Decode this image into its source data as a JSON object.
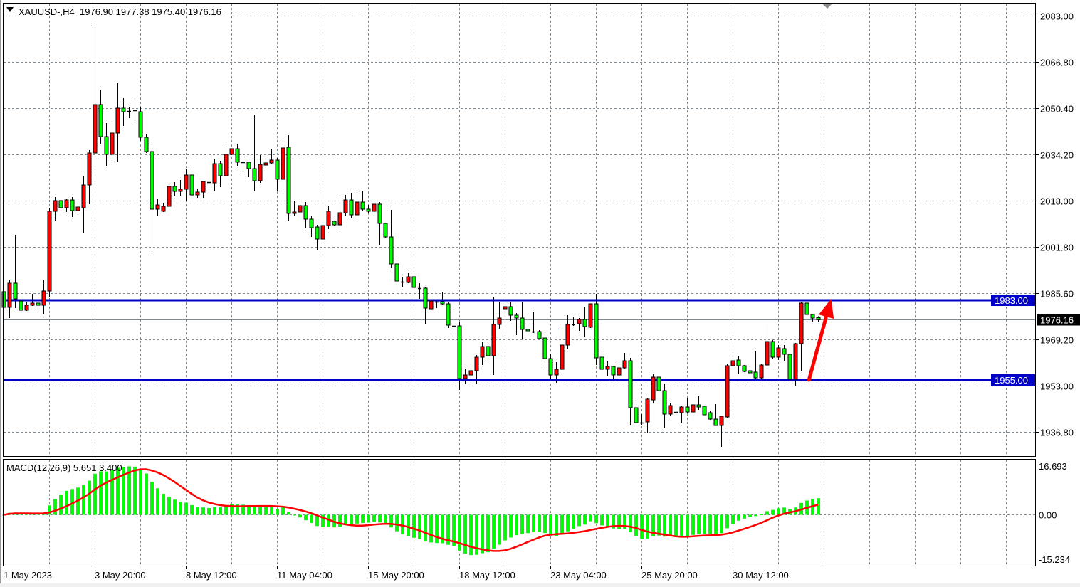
{
  "header": {
    "symbol": "XAUUSD-,H4",
    "ohlc_text": "1976.90 1977.38 1975.40 1976.16",
    "menu_icon": "triangle-down-icon"
  },
  "chart_data": [
    {
      "type": "candlestick",
      "symbol": "XAUUSD-",
      "timeframe": "H4",
      "up_color": "#FF0000",
      "down_color": "#00FF00",
      "grid": true,
      "ylim": [
        1928.25,
        2087.25
      ],
      "y_ticks": [
        "2083.00",
        "2066.80",
        "2050.40",
        "2034.20",
        "2018.00",
        "2001.80",
        "1985.60",
        "1969.20",
        "1953.00",
        "1936.80"
      ],
      "x_tick_labels": [
        {
          "bar": 0,
          "label": "1 May 2023"
        },
        {
          "bar": 16,
          "label": "3 May 20:00"
        },
        {
          "bar": 32,
          "label": "8 May 12:00"
        },
        {
          "bar": 48,
          "label": "11 May 04:00"
        },
        {
          "bar": 64,
          "label": "15 May 20:00"
        },
        {
          "bar": 80,
          "label": "18 May 12:00"
        },
        {
          "bar": 96,
          "label": "23 May 04:00"
        },
        {
          "bar": 112,
          "label": "25 May 20:00"
        },
        {
          "bar": 128,
          "label": "30 May 12:00"
        }
      ],
      "horizontal_lines": [
        {
          "price": 1983.0,
          "label": "1983.00",
          "color": "#0000C8"
        },
        {
          "price": 1955.0,
          "label": "1955.00",
          "color": "#0000C8"
        }
      ],
      "current_price": {
        "price": 1976.16,
        "label": "1976.16",
        "color": "#000000"
      },
      "annotations": [
        {
          "type": "arrow",
          "color": "#FF0000",
          "from": {
            "bar": 141.4,
            "price": 1955.0
          },
          "to": {
            "bar": 145.3,
            "price": 1983.5
          }
        }
      ],
      "ohlc": [
        [
          1986.0,
          1986.5,
          1978.5,
          1980.5
        ],
        [
          1980.5,
          1990.0,
          1976.75,
          1989.0
        ],
        [
          1989.0,
          2006.0,
          1980.25,
          1983.5
        ],
        [
          1982.75,
          1984.0,
          1979.25,
          1979.5
        ],
        [
          1979.5,
          1982.25,
          1979.25,
          1981.25
        ],
        [
          1981.25,
          1985.25,
          1981.0,
          1982.0
        ],
        [
          1982.0,
          1985.5,
          1980.0,
          1981.25
        ],
        [
          1981.25,
          1990.0,
          1978.0,
          1986.25
        ],
        [
          1986.25,
          2015.25,
          1984.0,
          2014.25
        ],
        [
          2014.25,
          2019.25,
          2010.75,
          2018.0
        ],
        [
          2018.0,
          2018.25,
          2015.25,
          2015.5
        ],
        [
          2015.5,
          2018.5,
          2014.0,
          2018.25
        ],
        [
          2018.25,
          2019.25,
          2012.25,
          2014.5
        ],
        [
          2014.5,
          2017.25,
          2014.0,
          2015.75
        ],
        [
          2015.5,
          2026.75,
          2006.75,
          2023.5
        ],
        [
          2023.5,
          2035.75,
          2016.75,
          2034.75
        ],
        [
          2034.75,
          2079.75,
          2028.75,
          2051.75
        ],
        [
          2051.75,
          2057.0,
          2038.0,
          2040.5
        ],
        [
          2040.5,
          2045.25,
          2030.25,
          2034.25
        ],
        [
          2034.25,
          2044.75,
          2030.75,
          2041.75
        ],
        [
          2041.75,
          2059.5,
          2031.75,
          2050.5
        ],
        [
          2050.5,
          2054.0,
          2044.25,
          2049.25
        ],
        [
          2049.5,
          2050.75,
          2047.0,
          2049.5
        ],
        [
          2049.75,
          2052.75,
          2045.0,
          2049.5
        ],
        [
          2049.25,
          2051.0,
          2039.0,
          2040.25
        ],
        [
          2040.25,
          2041.5,
          2034.75,
          2035.25
        ],
        [
          2035.25,
          2038.25,
          1999.0,
          2015.0
        ],
        [
          2015.0,
          2018.5,
          2012.5,
          2016.5
        ],
        [
          2014.25,
          2017.25,
          2014.0,
          2016.0
        ],
        [
          2016.0,
          2023.75,
          2014.75,
          2023.0
        ],
        [
          2023.0,
          2024.5,
          2019.75,
          2021.25
        ],
        [
          2021.25,
          2025.25,
          2019.5,
          2022.0
        ],
        [
          2022.0,
          2029.25,
          2017.75,
          2027.0
        ],
        [
          2027.0,
          2029.25,
          2019.75,
          2020.0
        ],
        [
          2020.0,
          2022.25,
          2019.0,
          2021.0
        ],
        [
          2021.0,
          2024.75,
          2019.0,
          2024.75
        ],
        [
          2024.5,
          2028.5,
          2021.25,
          2024.5
        ],
        [
          2024.25,
          2032.75,
          2021.25,
          2031.0
        ],
        [
          2031.0,
          2032.0,
          2022.75,
          2026.75
        ],
        [
          2026.75,
          2037.5,
          2026.5,
          2034.25
        ],
        [
          2034.25,
          2036.25,
          2034.0,
          2036.25
        ],
        [
          2036.25,
          2038.0,
          2030.25,
          2031.5
        ],
        [
          2031.5,
          2032.75,
          2027.0,
          2031.5
        ],
        [
          2031.5,
          2031.75,
          2026.25,
          2029.25
        ],
        [
          2029.25,
          2048.0,
          2021.25,
          2025.0
        ],
        [
          2025.0,
          2034.0,
          2024.25,
          2030.75
        ],
        [
          2030.5,
          2032.0,
          2029.0,
          2031.25
        ],
        [
          2031.25,
          2036.25,
          2030.75,
          2032.25
        ],
        [
          2032.25,
          2033.0,
          2021.5,
          2025.5
        ],
        [
          2025.5,
          2039.0,
          2021.5,
          2036.5
        ],
        [
          2036.75,
          2041.0,
          2010.75,
          2013.5
        ],
        [
          2013.5,
          2018.0,
          2012.75,
          2014.0
        ],
        [
          2014.0,
          2016.75,
          2014.0,
          2016.25
        ],
        [
          2016.25,
          2017.5,
          2008.25,
          2011.5
        ],
        [
          2011.5,
          2012.5,
          2005.25,
          2008.5
        ],
        [
          2008.75,
          2009.5,
          2000.5,
          2004.5
        ],
        [
          2004.5,
          2022.25,
          2003.25,
          2009.25
        ],
        [
          2009.25,
          2016.25,
          2008.0,
          2014.25
        ],
        [
          2010.75,
          2011.0,
          2009.0,
          2009.5
        ],
        [
          2009.5,
          2018.75,
          2008.25,
          2013.75
        ],
        [
          2013.75,
          2020.0,
          2012.75,
          2018.25
        ],
        [
          2018.25,
          2020.75,
          2011.75,
          2013.0
        ],
        [
          2013.0,
          2022.0,
          2011.5,
          2017.5
        ],
        [
          2017.5,
          2021.25,
          2014.25,
          2015.0
        ],
        [
          2015.0,
          2016.5,
          2013.5,
          2014.25
        ],
        [
          2014.25,
          2018.25,
          2014.0,
          2016.75
        ],
        [
          2016.75,
          2017.5,
          2002.5,
          2010.0
        ],
        [
          2010.0,
          2010.25,
          2005.0,
          2005.25
        ],
        [
          2005.25,
          2014.75,
          1994.25,
          1995.75
        ],
        [
          1995.75,
          1997.0,
          1985.25,
          1989.75
        ],
        [
          1989.5,
          1991.0,
          1987.75,
          1989.5
        ],
        [
          1989.25,
          1992.75,
          1989.0,
          1991.25
        ],
        [
          1991.25,
          1992.0,
          1986.25,
          1987.5
        ],
        [
          1987.25,
          1989.0,
          1983.5,
          1987.25
        ],
        [
          1987.25,
          1987.75,
          1974.5,
          1980.25
        ],
        [
          1980.0,
          1984.25,
          1979.75,
          1982.75
        ],
        [
          1982.5,
          1982.75,
          1980.25,
          1982.5
        ],
        [
          1982.5,
          1985.75,
          1981.25,
          1981.75
        ],
        [
          1981.75,
          1982.25,
          1973.25,
          1974.25
        ],
        [
          1974.0,
          1978.75,
          1971.75,
          1974.0
        ],
        [
          1974.0,
          1975.25,
          1951.5,
          1955.5
        ],
        [
          1955.5,
          1958.75,
          1953.75,
          1956.75
        ],
        [
          1956.75,
          1959.0,
          1956.5,
          1958.25
        ],
        [
          1958.25,
          1963.75,
          1953.75,
          1963.0
        ],
        [
          1963.0,
          1968.5,
          1960.25,
          1966.75
        ],
        [
          1966.75,
          1968.0,
          1962.0,
          1963.5
        ],
        [
          1963.5,
          1984.0,
          1956.75,
          1974.5
        ],
        [
          1974.5,
          1982.5,
          1973.0,
          1976.75
        ],
        [
          1980.0,
          1981.5,
          1979.0,
          1980.75
        ],
        [
          1980.75,
          1982.25,
          1975.75,
          1977.75
        ],
        [
          1977.75,
          1978.5,
          1970.75,
          1976.75
        ],
        [
          1976.75,
          1982.5,
          1969.5,
          1972.75
        ],
        [
          1972.75,
          1978.5,
          1968.75,
          1972.25
        ],
        [
          1972.0,
          1978.75,
          1971.5,
          1972.0
        ],
        [
          1972.0,
          1972.5,
          1969.25,
          1969.5
        ],
        [
          1969.75,
          1971.5,
          1959.75,
          1962.5
        ],
        [
          1962.5,
          1964.25,
          1955.25,
          1956.75
        ],
        [
          1956.75,
          1961.25,
          1954.0,
          1958.75
        ],
        [
          1958.75,
          1973.25,
          1957.25,
          1967.25
        ],
        [
          1967.25,
          1977.75,
          1965.75,
          1974.5
        ],
        [
          1974.5,
          1977.0,
          1974.0,
          1974.5
        ],
        [
          1974.75,
          1976.75,
          1972.25,
          1976.25
        ],
        [
          1976.25,
          1980.5,
          1970.25,
          1973.75
        ],
        [
          1973.5,
          1981.75,
          1973.25,
          1981.75
        ],
        [
          1981.75,
          1985.25,
          1960.25,
          1962.75
        ],
        [
          1963.0,
          1965.0,
          1956.5,
          1958.75
        ],
        [
          1958.75,
          1961.75,
          1956.5,
          1959.75
        ],
        [
          1959.75,
          1960.0,
          1955.5,
          1956.75
        ],
        [
          1956.75,
          1961.25,
          1955.5,
          1959.25
        ],
        [
          1959.25,
          1964.5,
          1959.0,
          1961.75
        ],
        [
          1961.75,
          1962.75,
          1939.0,
          1945.25
        ],
        [
          1945.25,
          1946.75,
          1938.75,
          1940.0
        ],
        [
          1940.0,
          1943.0,
          1939.25,
          1940.0
        ],
        [
          1940.25,
          1948.75,
          1936.5,
          1948.25
        ],
        [
          1948.0,
          1957.0,
          1946.75,
          1956.0
        ],
        [
          1956.0,
          1956.5,
          1950.5,
          1951.25
        ],
        [
          1951.25,
          1953.75,
          1938.25,
          1943.0
        ],
        [
          1943.0,
          1946.75,
          1942.25,
          1946.0
        ],
        [
          1943.75,
          1944.5,
          1943.0,
          1943.75
        ],
        [
          1943.5,
          1946.0,
          1939.75,
          1945.5
        ],
        [
          1945.5,
          1948.75,
          1943.5,
          1943.75
        ],
        [
          1943.75,
          1946.5,
          1940.5,
          1946.25
        ],
        [
          1946.25,
          1949.5,
          1944.5,
          1945.5
        ],
        [
          1945.75,
          1946.0,
          1942.75,
          1942.75
        ],
        [
          1943.5,
          1944.0,
          1941.0,
          1941.25
        ],
        [
          1941.25,
          1946.5,
          1939.0,
          1939.0
        ],
        [
          1939.0,
          1942.25,
          1931.5,
          1942.25
        ],
        [
          1942.0,
          1960.5,
          1941.5,
          1960.0
        ],
        [
          1960.0,
          1961.75,
          1950.25,
          1961.75
        ],
        [
          1962.0,
          1963.25,
          1957.25,
          1960.0
        ],
        [
          1960.0,
          1960.25,
          1957.75,
          1958.0
        ],
        [
          1958.25,
          1960.25,
          1953.25,
          1957.5
        ],
        [
          1957.75,
          1965.25,
          1955.5,
          1955.75
        ],
        [
          1955.75,
          1960.5,
          1955.5,
          1960.25
        ],
        [
          1960.25,
          1974.5,
          1959.5,
          1968.5
        ],
        [
          1968.5,
          1969.0,
          1962.25,
          1963.0
        ],
        [
          1963.0,
          1967.25,
          1962.0,
          1966.25
        ],
        [
          1966.0,
          1967.25,
          1961.5,
          1964.0
        ],
        [
          1964.0,
          1964.5,
          1954.75,
          1955.25
        ],
        [
          1955.25,
          1968.0,
          1953.0,
          1967.75
        ],
        [
          1967.75,
          1982.5,
          1958.25,
          1982.0
        ],
        [
          1982.0,
          1982.25,
          1975.25,
          1978.0
        ],
        [
          1978.0,
          1978.25,
          1975.5,
          1976.75
        ],
        [
          1976.9,
          1977.38,
          1975.4,
          1976.16
        ]
      ]
    },
    {
      "type": "bar+line",
      "indicator": "MACD",
      "title": "MACD(12,26,9) 5.651 3.400",
      "params": [
        12,
        26,
        9
      ],
      "main_value": 5.651,
      "signal_value": 3.4,
      "histogram_color": "#00FF00",
      "signal_color": "#FF0000",
      "ylim": [
        -15.234,
        16.693
      ],
      "y_ticks": [
        {
          "value": 16.693,
          "label": "16.693"
        },
        {
          "value": 0,
          "label": "0.00"
        },
        {
          "value": -15.234,
          "label": "-15.234"
        }
      ]
    }
  ]
}
